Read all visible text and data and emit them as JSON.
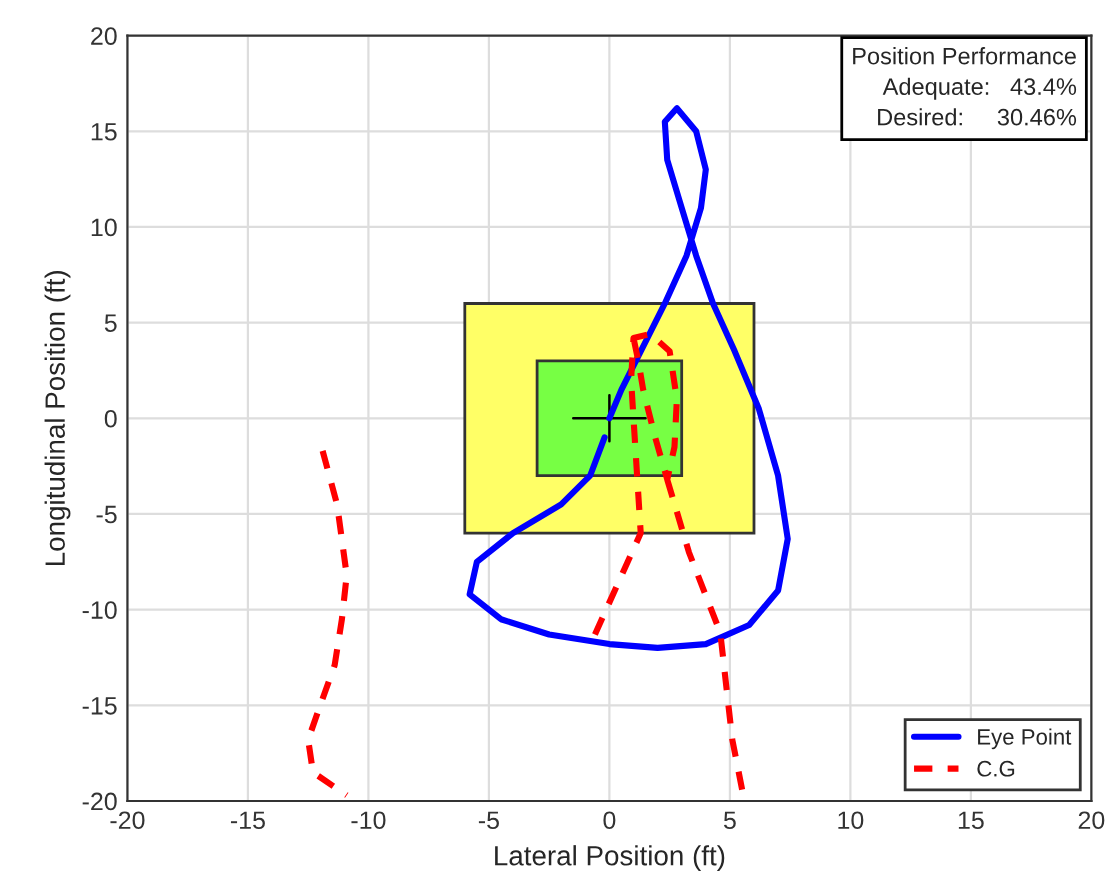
{
  "chart_data": {
    "type": "line",
    "xlabel": "Lateral Position (ft)",
    "ylabel": "Longitudinal Position (ft)",
    "xlim": [
      -20,
      20
    ],
    "ylim": [
      -20,
      20
    ],
    "xticks": [
      -20,
      -15,
      -10,
      -5,
      0,
      5,
      10,
      15,
      20
    ],
    "yticks": [
      -20,
      -15,
      -10,
      -5,
      0,
      5,
      10,
      15,
      20
    ],
    "grid": true,
    "legend": "bottom right",
    "annotations": [
      "Position Performance",
      "Adequate:   43.4%",
      "Desired:     30.46%"
    ],
    "series": [
      {
        "type": "area",
        "color": "#ffff66",
        "x": [
          -6,
          -6,
          6,
          6,
          -6
        ],
        "values": [
          -6,
          6,
          6,
          -6,
          -6
        ]
      },
      {
        "type": "area",
        "color": "#77ff44",
        "x": [
          -3,
          -3,
          3,
          3,
          -3
        ],
        "values": [
          -3,
          3,
          3,
          -3,
          -3
        ]
      },
      {
        "color": "#000000",
        "line_style": "solid",
        "x": [
          -1.5,
          1.5,
          null,
          0,
          0
        ],
        "values": [
          0,
          0,
          null,
          1.2,
          -1.2
        ]
      },
      {
        "name": "Eye Point",
        "color": "#0000ff",
        "line_style": "solid",
        "x": [
          0,
          0.5,
          1.3,
          2.3,
          3.2,
          3.8,
          4,
          3.6,
          2.8,
          2.3,
          2.4,
          3,
          3.6,
          4.3,
          5.2,
          6.2,
          7,
          7.4,
          7,
          5.8,
          4,
          2,
          0,
          -2.5,
          -4.5,
          -5.8,
          -5.5,
          -4,
          -2,
          -0.8,
          -0.2
        ],
        "values": [
          0,
          1.5,
          3.5,
          6,
          8.5,
          11,
          13,
          15,
          16.2,
          15.5,
          13.5,
          11,
          8.5,
          6,
          3.5,
          0.5,
          -3,
          -6.3,
          -9,
          -10.8,
          -11.8,
          -12,
          -11.8,
          -11.3,
          -10.5,
          -9.2,
          -7.5,
          -6,
          -4.5,
          -3,
          -1
        ]
      },
      {
        "name": "C.G",
        "color": "#ff0000",
        "line_style": "dashed",
        "x": [
          -11.9,
          -11.3,
          -10.9,
          -11.1,
          -11.4,
          -12,
          -12.5,
          -12.3,
          -10.9,
          null,
          -0.6,
          0.4,
          1.3,
          1.1,
          0.9,
          1.0,
          1.7,
          2.5,
          2.8,
          2.7,
          2.4,
          1.9,
          1.4,
          1.2,
          1.0,
          null,
          2.4,
          3.3,
          4.6,
          5.1,
          5.6
        ],
        "values": [
          -1.7,
          -4.5,
          -8.2,
          -10.5,
          -12.9,
          -15,
          -16.8,
          -18.5,
          -19.7,
          null,
          -11.3,
          -8.5,
          -6,
          -2,
          2,
          4.2,
          4.4,
          3.5,
          1,
          -1.5,
          -3.2,
          -1,
          1.5,
          3,
          4.2,
          null,
          -3.2,
          -7,
          -11.2,
          -16.8,
          -20
        ]
      }
    ]
  }
}
